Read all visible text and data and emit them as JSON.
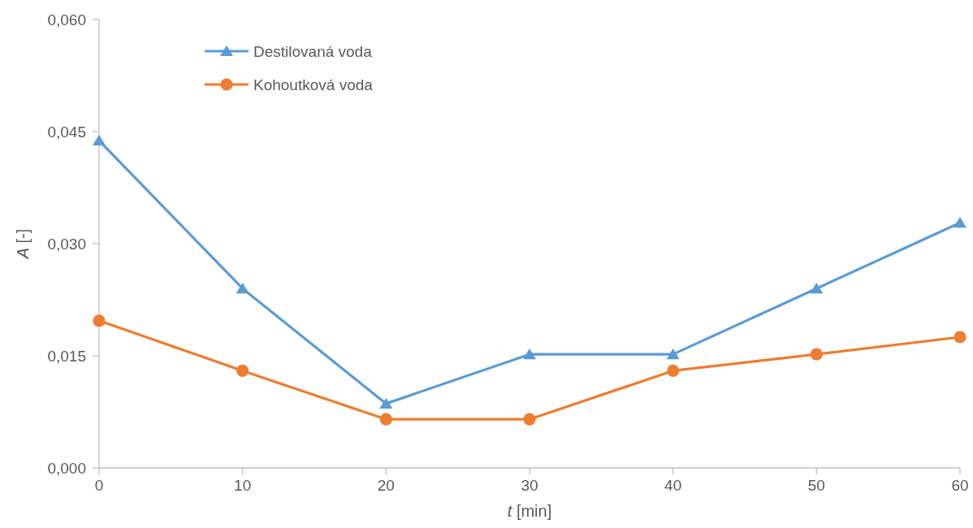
{
  "chart_data": {
    "type": "line",
    "xlabel": "t [min]",
    "ylabel": "A [-]",
    "x": [
      0,
      10,
      20,
      30,
      40,
      50,
      60
    ],
    "series": [
      {
        "name": "Destilovaná voda",
        "color": "#5b9bd5",
        "marker": "triangle",
        "values": [
          0.0438,
          0.024,
          0.0086,
          0.0152,
          0.0152,
          0.024,
          0.0328
        ]
      },
      {
        "name": "Kohoutková voda",
        "color": "#ed7d31",
        "marker": "circle",
        "values": [
          0.0197,
          0.013,
          0.0065,
          0.0065,
          0.013,
          0.0152,
          0.0175
        ]
      }
    ],
    "xlim": [
      0,
      60
    ],
    "xticks": [
      0,
      10,
      20,
      30,
      40,
      50,
      60
    ],
    "ylim": [
      0,
      0.06
    ],
    "yticks": [
      {
        "value": 0,
        "label": "0,000"
      },
      {
        "value": 0.015,
        "label": "0,015"
      },
      {
        "value": 0.03,
        "label": "0,030"
      },
      {
        "value": 0.045,
        "label": "0,045"
      },
      {
        "value": 0.06,
        "label": "0,060"
      }
    ],
    "grid": false,
    "legend": "top left",
    "line_style": "solid"
  }
}
